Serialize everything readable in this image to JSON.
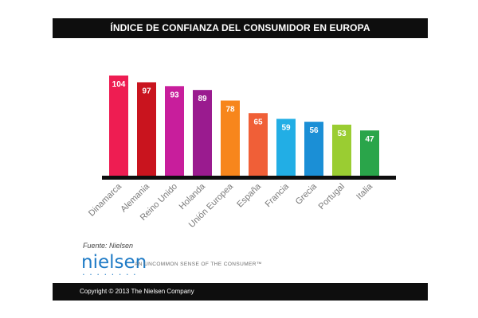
{
  "chart_data": {
    "type": "bar",
    "title": "ÍNDICE DE CONFIANZA DEL CONSUMIDOR EN EUROPA",
    "categories": [
      "Dinamarca",
      "Alemania",
      "Reino Unido",
      "Holanda",
      "Unión Europea",
      "España",
      "Francia",
      "Grecia",
      "Portugal",
      "Italia"
    ],
    "values": [
      104,
      97,
      93,
      89,
      78,
      65,
      59,
      56,
      53,
      47
    ],
    "colors": [
      "#ee1d52",
      "#c9141e",
      "#c81e9c",
      "#9a1b8f",
      "#f7861c",
      "#f05f37",
      "#22aee5",
      "#1b8fd6",
      "#9acd32",
      "#2aa54a"
    ],
    "ylim": [
      0,
      104
    ],
    "xlabel": "",
    "ylabel": ""
  },
  "source": "Fuente: Nielsen",
  "logo": {
    "name": "nielsen",
    "dots": "• • • • • • • •",
    "tagline": "AN UNCOMMON SENSE OF THE CONSUMER™",
    "color": "#1f7bc6"
  },
  "footer": "Copyright © 2013 The Nielsen Company"
}
